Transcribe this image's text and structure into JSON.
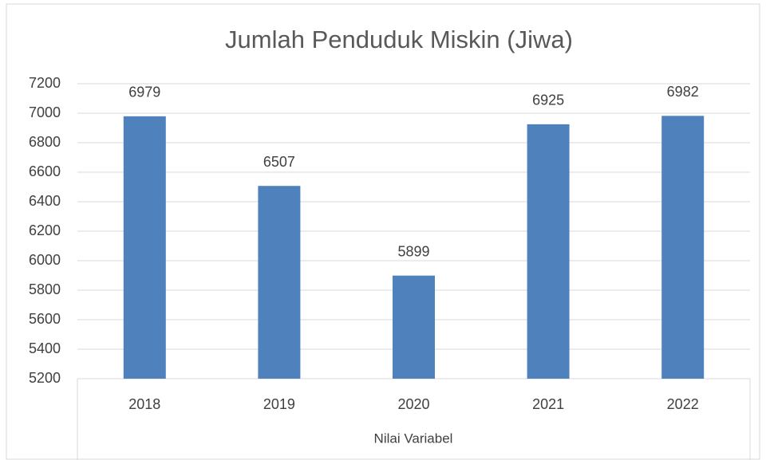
{
  "chart_data": {
    "type": "bar",
    "title": "Jumlah Penduduk Miskin (Jiwa)",
    "x_label": "Nilai Variabel",
    "categories": [
      "2018",
      "2019",
      "2020",
      "2021",
      "2022"
    ],
    "values": [
      6979,
      6507,
      5899,
      6925,
      6982
    ],
    "color": "#4f81bd",
    "ylim": [
      5200,
      7200
    ],
    "yticks": [
      5200,
      5400,
      5600,
      5800,
      6000,
      6200,
      6400,
      6600,
      6800,
      7000,
      7200
    ],
    "grid": true,
    "data_labels": true
  }
}
